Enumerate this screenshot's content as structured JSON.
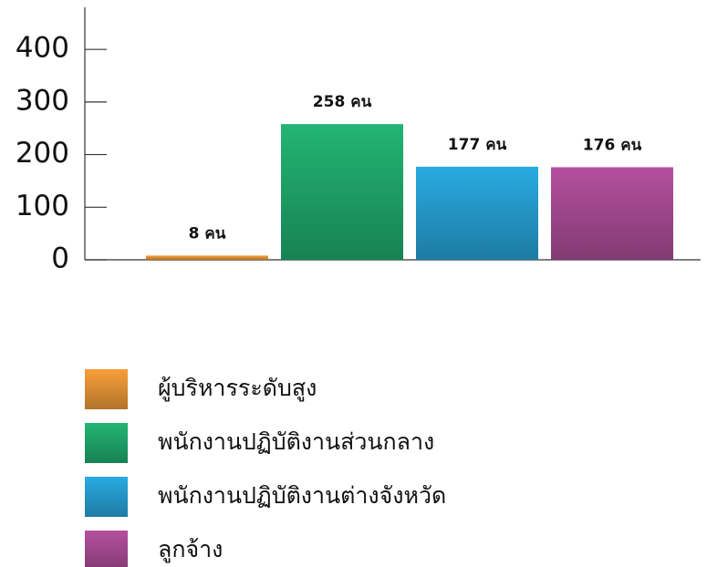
{
  "chart_data": {
    "type": "bar",
    "series": [
      {
        "name": "ผู้บริหารระดับสูง",
        "color": "#f7a03a",
        "values": [
          8
        ],
        "value_labels": [
          "8 คน"
        ]
      },
      {
        "name": "พนักงานปฏิบัติงานส่วนกลาง",
        "color": "#22b573",
        "values": [
          258
        ],
        "value_labels": [
          "258 คน"
        ]
      },
      {
        "name": "พนักงานปฏิบัติงานต่างจังหวัด",
        "color": "#29abe2",
        "values": [
          177
        ],
        "value_labels": [
          "177 คน"
        ]
      },
      {
        "name": "ลูกจ้าง",
        "color": "#b5509f",
        "values": [
          176
        ],
        "value_labels": [
          "176 คน"
        ]
      }
    ],
    "ylim": [
      0,
      480
    ],
    "yticks": [
      0,
      100,
      200,
      300,
      400
    ],
    "grid": false
  }
}
